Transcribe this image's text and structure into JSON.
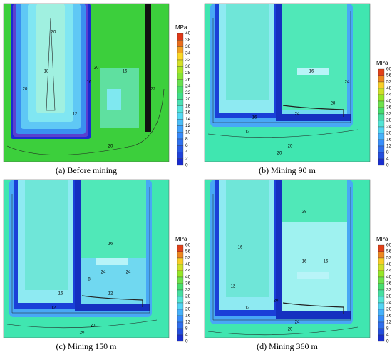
{
  "panels": [
    {
      "caption": "(a) Before mining",
      "unit": "MPa",
      "scale": [
        40,
        38,
        36,
        34,
        32,
        30,
        28,
        26,
        24,
        22,
        20,
        18,
        16,
        14,
        12,
        10,
        8,
        6,
        4,
        2,
        0
      ],
      "contour_labels": [
        "20",
        "16",
        "20",
        "18",
        "22",
        "20",
        "16",
        "20",
        "12"
      ]
    },
    {
      "caption": "(b) Mining 90 m",
      "unit": "MPa",
      "scale": [
        60,
        56,
        52,
        48,
        44,
        40,
        36,
        32,
        28,
        24,
        20,
        16,
        12,
        8,
        4,
        0
      ],
      "contour_labels": [
        "16",
        "16",
        "12",
        "24",
        "20",
        "20",
        "28",
        "24"
      ]
    },
    {
      "caption": "(c) Mining 150 m",
      "unit": "MPa",
      "scale": [
        60,
        56,
        52,
        48,
        44,
        40,
        36,
        32,
        28,
        24,
        20,
        16,
        12,
        8,
        4,
        0
      ],
      "contour_labels": [
        "16",
        "16",
        "12",
        "24",
        "20",
        "20",
        "24",
        "12",
        "8"
      ]
    },
    {
      "caption": "(d) Mining 360 m",
      "unit": "MPa",
      "scale": [
        60,
        56,
        52,
        48,
        44,
        40,
        36,
        32,
        28,
        24,
        20,
        16,
        12,
        8,
        4,
        0
      ],
      "contour_labels": [
        "20",
        "16",
        "16",
        "12",
        "24",
        "20",
        "28",
        "16",
        "12"
      ]
    }
  ]
}
